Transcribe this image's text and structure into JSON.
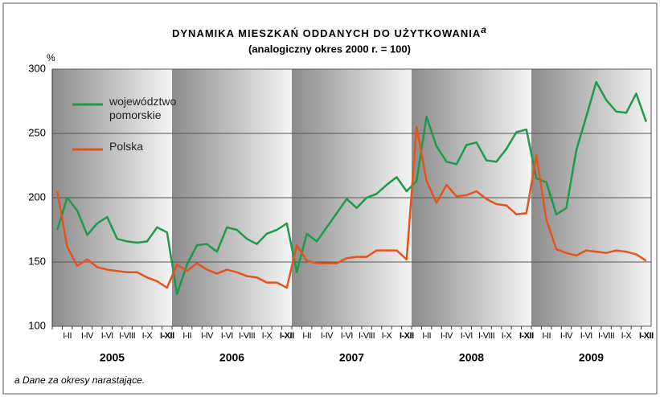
{
  "chart_data": {
    "type": "line",
    "title": "DYNAMIKA MIESZKAŃ ODDANYCH DO UŻYTKOWANIA",
    "title_note": "a",
    "subtitle": "(analogiczny okres 2000 r. = 100)",
    "y_unit": "%",
    "footnote": "a Dane za okresy narastające.",
    "years": [
      "2005",
      "2006",
      "2007",
      "2008",
      "2009"
    ],
    "categories": [
      null,
      "I-II",
      null,
      "I-IV",
      null,
      "I-VI",
      null,
      "I-VIII",
      null,
      "I-X",
      null,
      "I-XII",
      null,
      "I-II",
      null,
      "I-IV",
      null,
      "I-VI",
      null,
      "I-VIII",
      null,
      "I-X",
      null,
      "I-XII",
      null,
      "I-II",
      null,
      "I-IV",
      null,
      "I-VI",
      null,
      "I-VIII",
      null,
      "I-X",
      null,
      "I-XII",
      null,
      "I-II",
      null,
      "I-IV",
      null,
      "I-VI",
      null,
      "I-VIII",
      null,
      "I-X",
      null,
      "I-XII",
      null,
      "I-II",
      null,
      "I-IV",
      null,
      "I-VI",
      null,
      "I-VIII",
      null,
      "I-X",
      null,
      "I-XII"
    ],
    "series": [
      {
        "name": "województwo pomorskie",
        "color": "#1e9a4a",
        "values": [
          175,
          200,
          190,
          171,
          180,
          185,
          168,
          166,
          165,
          166,
          177,
          173,
          125,
          148,
          163,
          164,
          158,
          177,
          175,
          168,
          164,
          172,
          175,
          180,
          142,
          172,
          166,
          177,
          188,
          199,
          192,
          200,
          203,
          210,
          216,
          205,
          213,
          263,
          240,
          228,
          226,
          241,
          243,
          229,
          228,
          238,
          251,
          253,
          215,
          212,
          187,
          192,
          237,
          263,
          290,
          276,
          267,
          266,
          281,
          259
        ]
      },
      {
        "name": "Polska",
        "color": "#e4541c",
        "values": [
          205,
          162,
          147,
          152,
          146,
          144,
          143,
          142,
          142,
          138,
          135,
          130,
          148,
          143,
          149,
          144,
          141,
          144,
          142,
          139,
          138,
          134,
          134,
          130,
          163,
          151,
          149,
          149,
          149,
          153,
          154,
          154,
          159,
          159,
          159,
          152,
          255,
          213,
          196,
          210,
          201,
          202,
          205,
          199,
          195,
          194,
          187,
          188,
          233,
          183,
          160,
          157,
          155,
          159,
          158,
          157,
          159,
          158,
          156,
          151
        ]
      }
    ],
    "ylim": [
      100,
      300
    ],
    "yticks": [
      100,
      150,
      200,
      250,
      300
    ],
    "grid": true
  }
}
